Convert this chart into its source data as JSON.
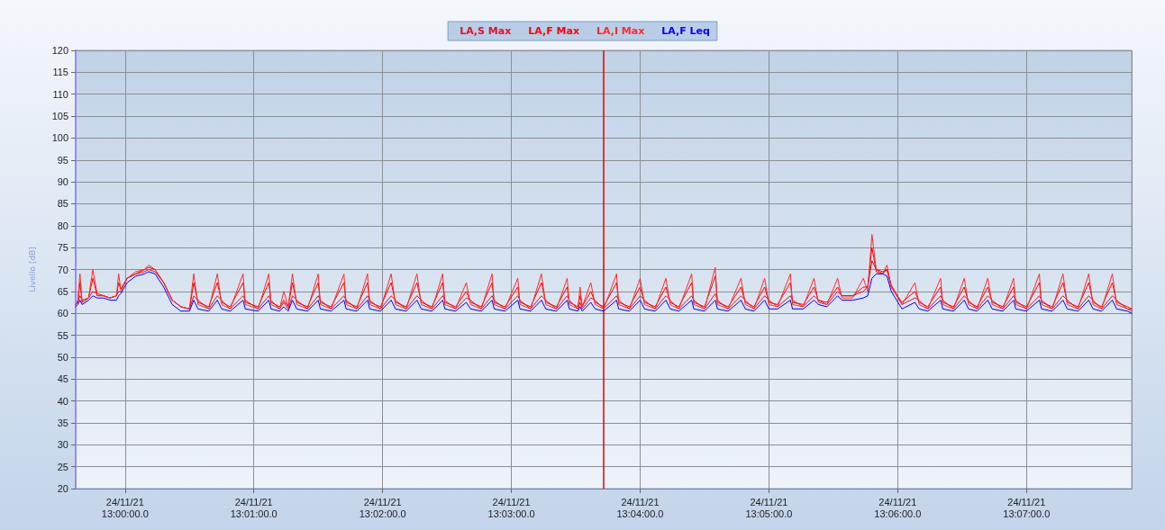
{
  "chart_data": {
    "type": "line",
    "ylabel": "Livello [dB]",
    "x": [
      "--11-24T12:59:37",
      "--11-24T12:59:38",
      "--11-24T12:59:39",
      "--11-24T12:59:40",
      "--11-24T12:59:43",
      "--11-24T12:59:45",
      "--11-24T12:59:47",
      "--11-24T12:59:50",
      "--11-24T12:59:53",
      "--11-24T12:59:56",
      "--11-24T12:59:57",
      "--11-24T12:59:58",
      "--11-24T13:00:01",
      "--11-24T13:00:05",
      "--11-24T13:00:09",
      "--11-24T13:00:11",
      "--11-24T13:00:14",
      "--11-24T13:00:18",
      "--11-24T13:00:22",
      "--11-24T13:00:26",
      "--11-24T13:00:30",
      "--11-24T13:00:32",
      "--11-24T13:00:34",
      "--11-24T13:00:39",
      "--11-24T13:00:43",
      "--11-24T13:00:45",
      "--11-24T13:00:49",
      "--11-24T13:00:55",
      "--11-24T13:00:56",
      "--11-24T13:01:02",
      "--11-24T13:01:07",
      "--11-24T13:01:08",
      "--11-24T13:01:12",
      "--11-24T13:01:14",
      "--11-24T13:01:16",
      "--11-24T13:01:18",
      "--11-24T13:01:20",
      "--11-24T13:01:25",
      "--11-24T13:01:30",
      "--11-24T13:01:31",
      "--11-24T13:01:36",
      "--11-24T13:01:42",
      "--11-24T13:01:43",
      "--11-24T13:01:48",
      "--11-24T13:01:53",
      "--11-24T13:01:54",
      "--11-24T13:01:59",
      "--11-24T13:02:04",
      "--11-24T13:02:06",
      "--11-24T13:02:11",
      "--11-24T13:02:16",
      "--11-24T13:02:18",
      "--11-24T13:02:23",
      "--11-24T13:02:28",
      "--11-24T13:02:29",
      "--11-24T13:02:34",
      "--11-24T13:02:39",
      "--11-24T13:02:41",
      "--11-24T13:02:46",
      "--11-24T13:02:51",
      "--11-24T13:02:52",
      "--11-24T13:02:57",
      "--11-24T13:03:03",
      "--11-24T13:03:04",
      "--11-24T13:03:09",
      "--11-24T13:03:14",
      "--11-24T13:03:16",
      "--11-24T13:03:21",
      "--11-24T13:03:26",
      "--11-24T13:03:27",
      "--11-24T13:03:31",
      "--11-24T13:03:32",
      "--11-24T13:03:33",
      "--11-24T13:03:37",
      "--11-24T13:03:39",
      "--11-24T13:03:43",
      "--11-24T13:03:49",
      "--11-24T13:03:50",
      "--11-24T13:03:55",
      "--11-24T13:04:00",
      "--11-24T13:04:02",
      "--11-24T13:04:07",
      "--11-24T13:04:12",
      "--11-24T13:04:14",
      "--11-24T13:04:18",
      "--11-24T13:04:24",
      "--11-24T13:04:25",
      "--11-24T13:04:30",
      "--11-24T13:04:35",
      "--11-24T13:04:36",
      "--11-24T13:04:41",
      "--11-24T13:04:47",
      "--11-24T13:04:49",
      "--11-24T13:04:53",
      "--11-24T13:04:58",
      "--11-24T13:05:00",
      "--11-24T13:05:04",
      "--11-24T13:05:10",
      "--11-24T13:05:11",
      "--11-24T13:05:16",
      "--11-24T13:05:21",
      "--11-24T13:05:23",
      "--11-24T13:05:27",
      "--11-24T13:05:32",
      "--11-24T13:05:34",
      "--11-24T13:05:39",
      "--11-24T13:05:44",
      "--11-24T13:05:46",
      "--11-24T13:05:48",
      "--11-24T13:05:50",
      "--11-24T13:05:53",
      "--11-24T13:05:55",
      "--11-24T13:05:57",
      "--11-24T13:06:02",
      "--11-24T13:06:08",
      "--11-24T13:06:10",
      "--11-24T13:06:14",
      "--11-24T13:06:20",
      "--11-24T13:06:21",
      "--11-24T13:06:26",
      "--11-24T13:06:31",
      "--11-24T13:06:33",
      "--11-24T13:06:37",
      "--11-24T13:06:42",
      "--11-24T13:06:44",
      "--11-24T13:06:49",
      "--11-24T13:06:54",
      "--11-24T13:06:55",
      "--11-24T13:07:00",
      "--11-24T13:07:06",
      "--11-24T13:07:07",
      "--11-24T13:07:12",
      "--11-24T13:07:17",
      "--11-24T13:07:19",
      "--11-24T13:07:24",
      "--11-24T13:07:29",
      "--11-24T13:07:31",
      "--11-24T13:07:35",
      "--11-24T13:07:40",
      "--11-24T13:07:42",
      "--11-24T13:07:47",
      "--11-24T13:07:49"
    ],
    "series": [
      {
        "name": "LA,S Max",
        "color": "#e0102a",
        "values": [
          62,
          62.5,
          64,
          63,
          63.5,
          65,
          64.5,
          64,
          63.5,
          64,
          65,
          65,
          68,
          69,
          69.5,
          70,
          69.5,
          67,
          63,
          61.5,
          61,
          64,
          63,
          61,
          64,
          63,
          61,
          64,
          63,
          61,
          64,
          63,
          61,
          62.5,
          61,
          64,
          63,
          61,
          64,
          63,
          61,
          64,
          63,
          61,
          64,
          63,
          61,
          64,
          63,
          61,
          64,
          63,
          61,
          64,
          63,
          61,
          63.5,
          63,
          61,
          64,
          63,
          61,
          64,
          63,
          61,
          64,
          63,
          61,
          64,
          63,
          61,
          62.5,
          61,
          63.5,
          63,
          61,
          64,
          63,
          61,
          64,
          63,
          61,
          64,
          63,
          61,
          64,
          63,
          61,
          64.5,
          63,
          61,
          64,
          63,
          61,
          64,
          63,
          61.5,
          64,
          63,
          61.5,
          64,
          63,
          62,
          65,
          64,
          64,
          65,
          66,
          72,
          70,
          69.5,
          70,
          66.5,
          62,
          63.5,
          63,
          61,
          64,
          63,
          61,
          64,
          63,
          61,
          64,
          63,
          61,
          64,
          63,
          61,
          64,
          63,
          61,
          64,
          63,
          61,
          64,
          63,
          61,
          64,
          63,
          61,
          61
        ]
      },
      {
        "name": "LA,F Max",
        "color": "#ff0000",
        "values": [
          62,
          62.5,
          67,
          62.5,
          63.5,
          68,
          64,
          64,
          63.5,
          64,
          67,
          65.5,
          68,
          69,
          70,
          70.5,
          70,
          67,
          63,
          61.5,
          61,
          67,
          62.5,
          61.5,
          67,
          62.5,
          61.5,
          67,
          62.5,
          61.5,
          67,
          62.5,
          61.5,
          63,
          61.5,
          67,
          62.5,
          61.5,
          67,
          62.5,
          61.5,
          67,
          62.5,
          61.5,
          67,
          62.5,
          61.5,
          67,
          62.5,
          61.5,
          67,
          62.5,
          61.5,
          67,
          62.5,
          61.5,
          65,
          62.5,
          61.5,
          67,
          62.5,
          61.5,
          66,
          62.5,
          61.5,
          67,
          62.5,
          61.5,
          66,
          62.5,
          61.5,
          64,
          61.5,
          65,
          62.5,
          61.5,
          67,
          62.5,
          61.5,
          66,
          62.5,
          61.5,
          66,
          62.5,
          61.5,
          67,
          62.5,
          61.5,
          68.5,
          62.5,
          61.5,
          66,
          62.5,
          61.5,
          66,
          62.5,
          62,
          67,
          62.5,
          62,
          66,
          63,
          62.5,
          66,
          64,
          64,
          66,
          66,
          75,
          69.5,
          69,
          70,
          66,
          62.5,
          65,
          62.5,
          61.5,
          66,
          62.5,
          61.5,
          66,
          62.5,
          61.5,
          66,
          62.5,
          61.5,
          66,
          62.5,
          61.5,
          67,
          62.5,
          61.5,
          67,
          62.5,
          61.5,
          67,
          62.5,
          61.5,
          67,
          62.5,
          61.5,
          61
        ]
      },
      {
        "name": "LA,I Max",
        "color": "#ff2a2a",
        "values": [
          62,
          63,
          69,
          62.5,
          63.5,
          70,
          64.5,
          64,
          63.5,
          64,
          69,
          65.5,
          68,
          69.5,
          70,
          71,
          70,
          67,
          63,
          61.5,
          61,
          69,
          62,
          61,
          69,
          62,
          61,
          69,
          62,
          61,
          69,
          62,
          61,
          65,
          61.5,
          69,
          62,
          61,
          69,
          62,
          61,
          69,
          62,
          61,
          69,
          62,
          61,
          69,
          62,
          61,
          69,
          62,
          61,
          69,
          62,
          61,
          67,
          62,
          61,
          69,
          62,
          61,
          68,
          62,
          61,
          69,
          62,
          61,
          68,
          62,
          61,
          66,
          61.5,
          67,
          62,
          61,
          69,
          62,
          61,
          68,
          62,
          61,
          68,
          62,
          61,
          69,
          62,
          61,
          70.5,
          62,
          61,
          68,
          62,
          61,
          68,
          62,
          61.5,
          69,
          62,
          61.5,
          68,
          62.5,
          62,
          68,
          63.5,
          63.5,
          68,
          65,
          78,
          70,
          69,
          71,
          66,
          62,
          67,
          62,
          61,
          68,
          62,
          61,
          68,
          62,
          61,
          68,
          62,
          61,
          68,
          62,
          61,
          69,
          62,
          61,
          69,
          62,
          61,
          69,
          62,
          61,
          69,
          62,
          61,
          60.5
        ]
      },
      {
        "name": "LA,F Leq",
        "color": "#0000ff",
        "values": [
          61.5,
          62,
          63,
          62,
          63,
          64,
          63.5,
          63.5,
          63,
          63,
          64,
          64.5,
          67,
          68.5,
          69,
          69.5,
          69,
          66,
          62,
          60.5,
          60.5,
          63,
          61,
          60.5,
          63,
          61,
          60.5,
          63,
          61,
          60.5,
          63,
          61,
          60.5,
          61.5,
          60.5,
          63,
          61,
          60.5,
          63,
          61,
          60.5,
          63,
          61,
          60.5,
          63,
          61,
          60.5,
          63,
          61,
          60.5,
          63,
          61,
          60.5,
          63,
          61,
          60.5,
          62.5,
          61,
          60.5,
          63,
          61,
          60.5,
          63,
          61,
          60.5,
          63,
          61,
          60.5,
          63,
          61,
          60.5,
          61.5,
          60.5,
          62.5,
          61,
          60.5,
          63,
          61,
          60.5,
          63,
          61,
          60.5,
          63,
          61,
          60.5,
          63,
          61,
          60.5,
          63,
          61,
          60.5,
          63,
          61,
          60.5,
          63,
          61,
          61,
          63,
          61,
          61,
          63,
          62,
          61.5,
          64,
          63,
          63,
          63.5,
          64,
          68,
          69,
          69,
          68.5,
          65,
          61,
          62.5,
          61,
          60.5,
          63,
          61,
          60.5,
          63,
          61,
          60.5,
          63,
          61,
          60.5,
          63,
          61,
          60.5,
          63,
          61,
          60.5,
          63,
          61,
          60.5,
          63,
          61,
          60.5,
          63,
          61,
          60.5,
          60
        ]
      }
    ],
    "xlim": [
      "--11-24T12:59:37",
      "--11-24T13:07:49"
    ],
    "xticks": [
      {
        "value": "--11-24T13:00",
        "label": "24/11/21\n13:00:00.0"
      },
      {
        "value": "--11-24T13:01",
        "label": "24/11/21\n13:01:00.0"
      },
      {
        "value": "--11-24T13:02",
        "label": "24/11/21\n13:02:00.0"
      },
      {
        "value": "--11-24T13:03",
        "label": "24/11/21\n13:03:00.0"
      },
      {
        "value": "--11-24T13:04",
        "label": "24/11/21\n13:04:00.0"
      },
      {
        "value": "--11-24T13:05",
        "label": "24/11/21\n13:05:00.0"
      },
      {
        "value": "--11-24T13:06",
        "label": "24/11/21\n13:06:00.0"
      },
      {
        "value": "--11-24T13:07",
        "label": "24/11/21\n13:07:00.0"
      }
    ],
    "ylim": [
      20,
      120
    ],
    "yticks": [
      20,
      25,
      30,
      35,
      40,
      45,
      50,
      55,
      60,
      65,
      70,
      75,
      80,
      85,
      90,
      95,
      100,
      105,
      110,
      115,
      120
    ],
    "ref_lines": [
      {
        "axis": "x",
        "value": "--11-24T13:03:43",
        "color": "#e00000"
      }
    ],
    "grid": true,
    "legend": "top",
    "marker": "none",
    "line_style": "solid"
  }
}
